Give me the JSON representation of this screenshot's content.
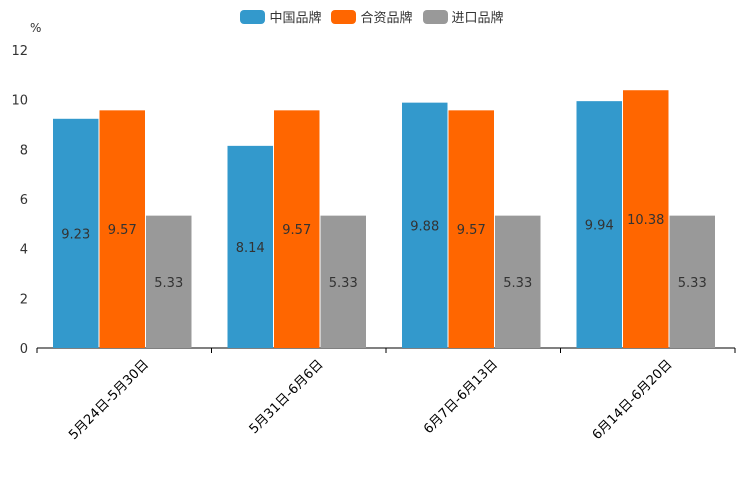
{
  "chart_data": {
    "type": "bar",
    "unit": "%",
    "categories": [
      "5月24日-5月30日",
      "5月31日-6月6日",
      "6月7日-6月13日",
      "6月14日-6月20日"
    ],
    "series": [
      {
        "name": "中国品牌",
        "color": "#3399cc",
        "values": [
          9.23,
          8.14,
          9.88,
          9.94
        ]
      },
      {
        "name": "合资品牌",
        "color": "#ff6600",
        "values": [
          9.57,
          9.57,
          9.57,
          10.38
        ]
      },
      {
        "name": "进口品牌",
        "color": "#999999",
        "values": [
          5.33,
          5.33,
          5.33,
          5.33
        ]
      }
    ],
    "yticks": [
      0,
      2,
      4,
      6,
      8,
      10,
      12
    ],
    "ylim": [
      0,
      12
    ],
    "legend": "top-center"
  }
}
